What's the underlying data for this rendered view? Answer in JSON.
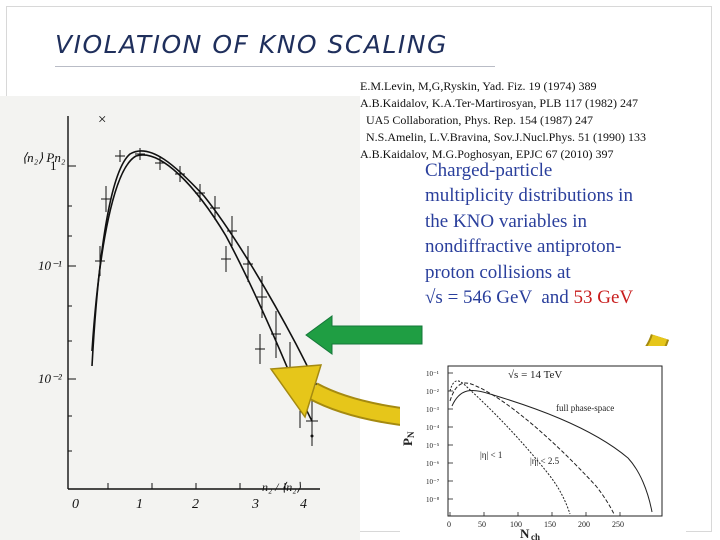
{
  "slide": {
    "title": "VIOLATION OF KNO SCALING",
    "references": [
      "E.M.Levin, M,G,Ryskin,  Yad. Fiz. 19 (1974) 389",
      "A.B.Kaidalov, K.A.Ter-Martirosyan, PLB 117 (1982) 247",
      "  UA5 Collaboration, Phys. Rep. 154 (1987) 247",
      "  N.S.Amelin, L.V.Bravina, Sov.J.Nucl.Phys. 51 (1990) 133",
      "A.B.Kaidalov, M.G.Poghosyan, EPJC 67 (2010) 397"
    ],
    "caption": {
      "lines": [
        "Charged-particle",
        "multiplicity distributions in",
        "the KNO variables in",
        "nondiffractive antiproton-",
        "proton collisions at"
      ],
      "energy_prefix": "√s = 546 GeV  and ",
      "energy_highlight": "53 GeV"
    },
    "colors": {
      "title": "#1f2f5c",
      "caption": "#2a3f9c",
      "highlight": "#c81e1e",
      "arrow_green": "#1f9e43",
      "arrow_yellow": "#e6c61a"
    }
  },
  "kno_plot": {
    "y_label": "⟨n₂⟩ Pn₂",
    "y_ticks": [
      "1",
      "10⁻¹",
      "10⁻²"
    ],
    "x_ticks": [
      "0",
      "1",
      "2",
      "3",
      "4"
    ],
    "x_label": "n₂ / ⟨n₂⟩",
    "legend_mark": "×"
  },
  "lhc_plot": {
    "energy_label": "√s = 14 TeV",
    "y_axis": "P",
    "y_axis_sub": "N",
    "y_ticks": [
      "10⁻¹",
      "10⁻²",
      "10⁻³",
      "10⁻⁴",
      "10⁻⁵",
      "10⁻⁶",
      "10⁻⁷",
      "10⁻⁸"
    ],
    "x_ticks": [
      "0",
      "50",
      "100",
      "150",
      "200",
      "250"
    ],
    "x_label": "N",
    "x_label_sub": "ch",
    "labels": {
      "full": "full phase-space",
      "eta1": "|η| < 1",
      "eta25": "|η| < 2.5"
    }
  }
}
